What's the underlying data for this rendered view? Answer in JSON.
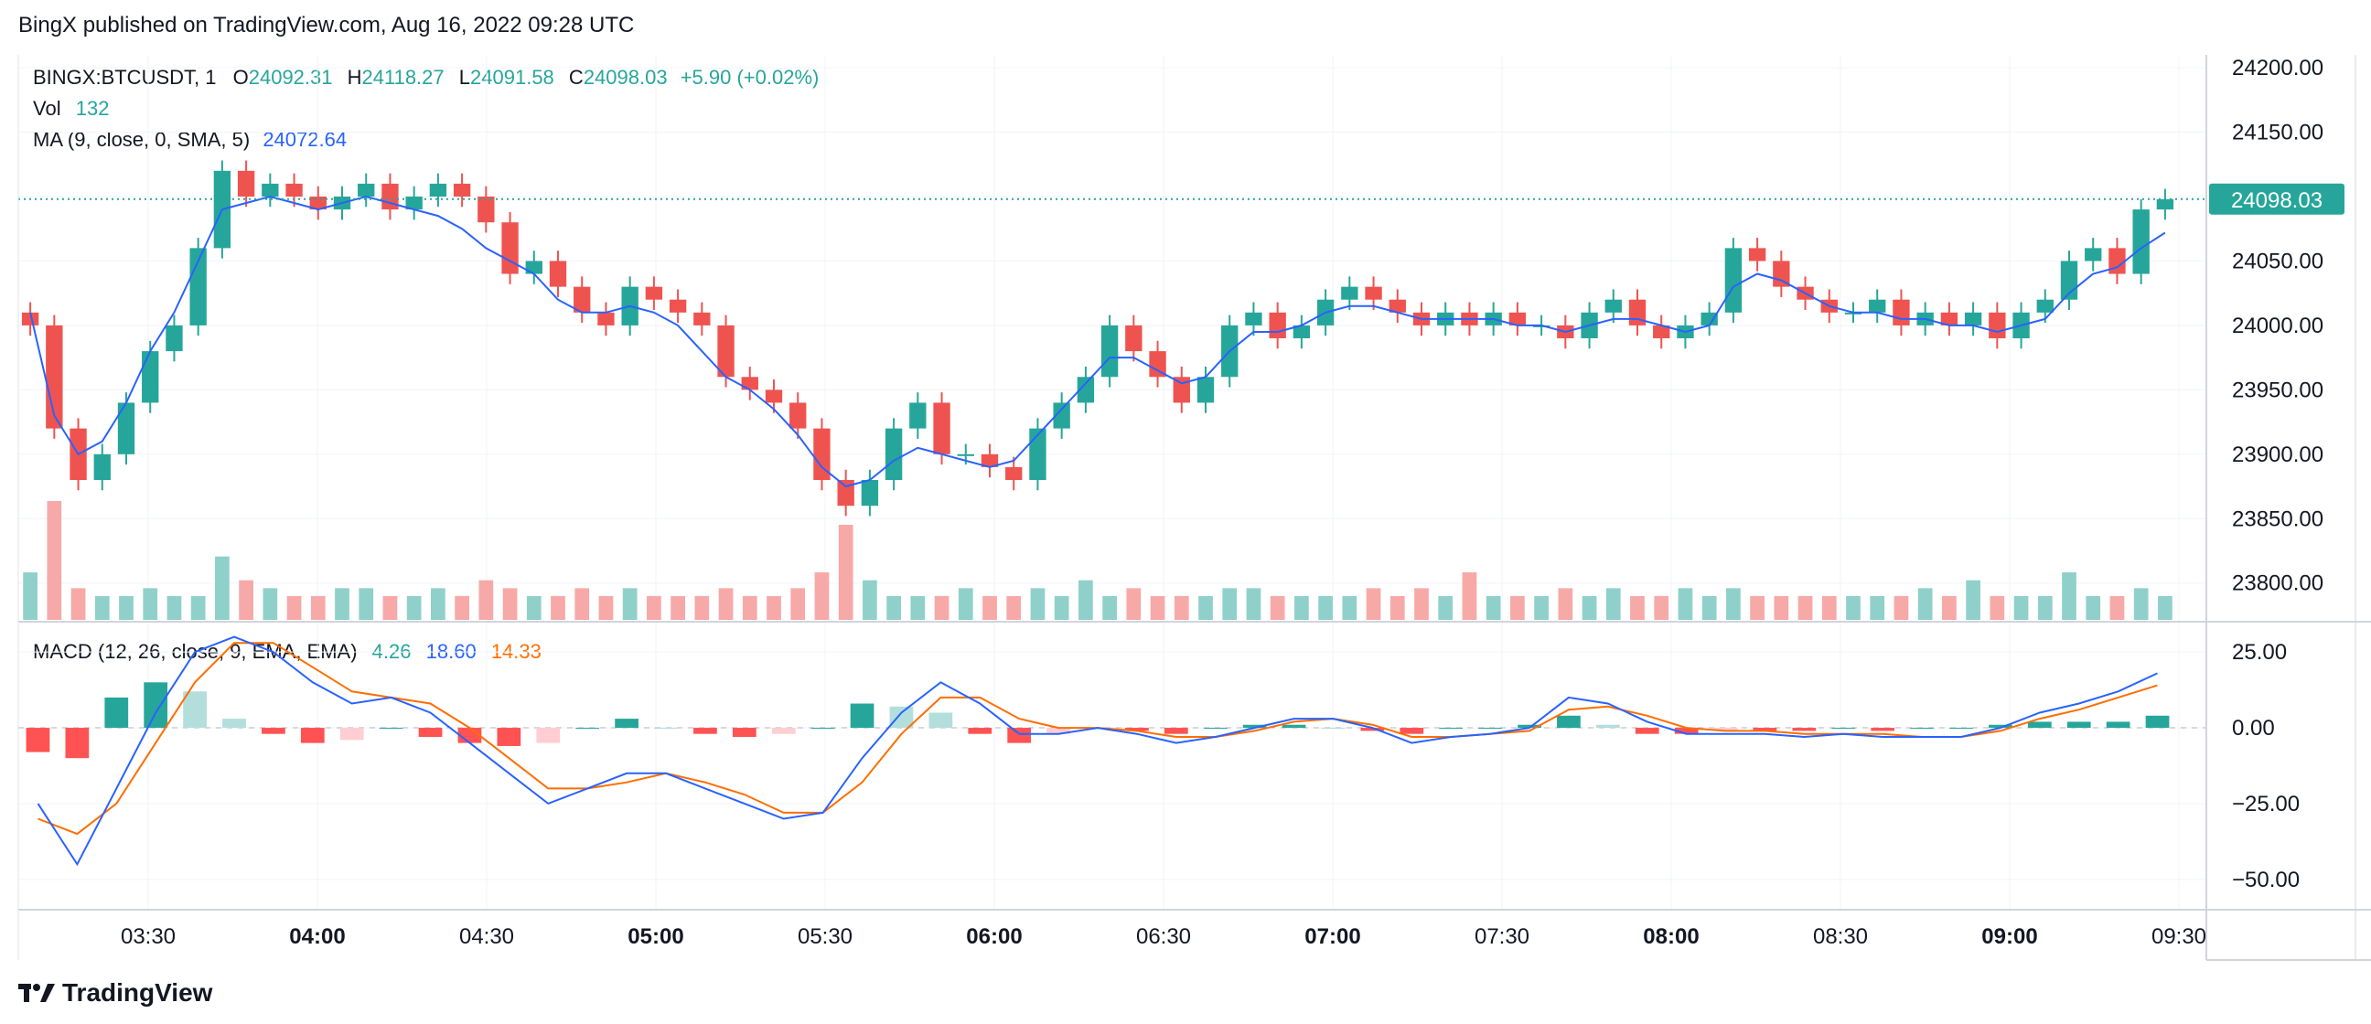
{
  "header": {
    "published": "BingX published on TradingView.com, Aug 16, 2022 09:28 UTC"
  },
  "legend": {
    "symbol": "BINGX:BTCUSDT, 1",
    "o_label": "O",
    "o": "24092.31",
    "h_label": "H",
    "h": "24118.27",
    "l_label": "L",
    "l": "24091.58",
    "c_label": "C",
    "c": "24098.03",
    "change": "+5.90 (+0.02%)",
    "vol_label": "Vol",
    "vol": "132",
    "ma_label": "MA (9, close, 0, SMA, 5)",
    "ma": "24072.64",
    "macd_label": "MACD (12, 26, close, 9, EMA, EMA)",
    "macd_hist": "4.26",
    "macd_line": "18.60",
    "macd_signal": "14.33"
  },
  "footer": {
    "brand": "TradingView"
  },
  "colors": {
    "up": "#26a69a",
    "down": "#ef5350",
    "ma": "#2962ff",
    "signal": "#ff6d00",
    "price_tag": "#26a69a"
  },
  "chart_data": [
    {
      "type": "candlestick",
      "title": "BINGX:BTCUSDT, 1",
      "x_ticks": [
        "03:30",
        "04:00",
        "04:30",
        "05:00",
        "05:30",
        "06:00",
        "06:30",
        "07:00",
        "07:30",
        "08:00",
        "08:30",
        "09:00",
        "09:30"
      ],
      "x_ticks_bold": [
        "04:00",
        "05:00",
        "06:00",
        "07:00",
        "08:00",
        "09:00"
      ],
      "y_ticks": [
        "24200.00",
        "24150.00",
        "24100.00",
        "24050.00",
        "24000.00",
        "23950.00",
        "23900.00",
        "23850.00",
        "23800.00"
      ],
      "ylim": [
        23770,
        24210
      ],
      "last_price": "24098.03",
      "close_series_approx": [
        24000,
        23920,
        23880,
        23900,
        23940,
        23980,
        24000,
        24060,
        24120,
        24100,
        24110,
        24100,
        24090,
        24100,
        24110,
        24090,
        24100,
        24110,
        24100,
        24080,
        24040,
        24050,
        24030,
        24010,
        24000,
        24030,
        24020,
        24010,
        24000,
        23960,
        23950,
        23940,
        23920,
        23880,
        23860,
        23880,
        23920,
        23940,
        23900,
        23900,
        23890,
        23880,
        23920,
        23940,
        23960,
        24000,
        23980,
        23960,
        23940,
        23960,
        24000,
        24010,
        23990,
        24000,
        24020,
        24030,
        24020,
        24010,
        24000,
        24010,
        24000,
        24010,
        24000,
        24000,
        23990,
        24010,
        24020,
        24000,
        23990,
        24000,
        24010,
        24060,
        24050,
        24030,
        24020,
        24010,
        24010,
        24020,
        24000,
        24010,
        24000,
        24010,
        23990,
        24010,
        24020,
        24050,
        24060,
        24040,
        24090,
        24098
      ],
      "ma_series_approx": [
        24010,
        23930,
        23900,
        23910,
        23940,
        23980,
        24010,
        24050,
        24090,
        24095,
        24100,
        24095,
        24090,
        24095,
        24100,
        24095,
        24090,
        24085,
        24075,
        24060,
        24050,
        24040,
        24020,
        24010,
        24010,
        24015,
        24010,
        24000,
        23980,
        23960,
        23950,
        23935,
        23915,
        23890,
        23875,
        23880,
        23895,
        23905,
        23900,
        23895,
        23890,
        23895,
        23915,
        23935,
        23955,
        23975,
        23975,
        23965,
        23955,
        23960,
        23980,
        23995,
        23995,
        24000,
        24010,
        24015,
        24015,
        24010,
        24005,
        24005,
        24005,
        24005,
        24000,
        24000,
        23995,
        24000,
        24005,
        24005,
        24000,
        23995,
        24000,
        24030,
        24040,
        24035,
        24025,
        24015,
        24010,
        24010,
        24005,
        24005,
        24000,
        24000,
        23995,
        24000,
        24005,
        24025,
        24040,
        24045,
        24060,
        24072
      ],
      "volume_series_approx": [
        60,
        150,
        40,
        30,
        30,
        40,
        30,
        30,
        80,
        50,
        40,
        30,
        30,
        40,
        40,
        30,
        30,
        40,
        30,
        50,
        40,
        30,
        30,
        40,
        30,
        40,
        30,
        30,
        30,
        40,
        30,
        30,
        40,
        60,
        120,
        50,
        30,
        30,
        30,
        40,
        30,
        30,
        40,
        30,
        50,
        30,
        40,
        30,
        30,
        30,
        40,
        40,
        30,
        30,
        30,
        30,
        40,
        30,
        40,
        30,
        60,
        30,
        30,
        30,
        40,
        30,
        40,
        30,
        30,
        40,
        30,
        40,
        30,
        30,
        30,
        30,
        30,
        30,
        30,
        40,
        30,
        50,
        30,
        30,
        30,
        60,
        30,
        30,
        40,
        30
      ]
    },
    {
      "type": "macd",
      "title": "MACD (12, 26, close, 9, EMA, EMA)",
      "y_ticks": [
        "25.00",
        "0.00",
        "−25.00",
        "−50.00"
      ],
      "ylim": [
        -60,
        35
      ],
      "macd_series_approx": [
        -25,
        -45,
        -20,
        5,
        25,
        30,
        25,
        15,
        8,
        10,
        5,
        -5,
        -15,
        -25,
        -20,
        -15,
        -15,
        -20,
        -25,
        -30,
        -28,
        -10,
        5,
        15,
        8,
        -2,
        -2,
        0,
        -2,
        -5,
        -3,
        0,
        3,
        3,
        0,
        -5,
        -3,
        -2,
        0,
        10,
        8,
        2,
        -2,
        -2,
        -2,
        -3,
        -2,
        -3,
        -3,
        -3,
        0,
        5,
        8,
        12,
        18
      ],
      "signal_series_approx": [
        -30,
        -35,
        -25,
        -5,
        15,
        28,
        28,
        20,
        12,
        10,
        8,
        0,
        -10,
        -20,
        -20,
        -18,
        -15,
        -18,
        -22,
        -28,
        -28,
        -18,
        -2,
        10,
        10,
        3,
        0,
        0,
        -1,
        -3,
        -3,
        -1,
        2,
        3,
        1,
        -3,
        -3,
        -2,
        -1,
        6,
        7,
        4,
        0,
        -1,
        -1,
        -2,
        -2,
        -2,
        -3,
        -3,
        -1,
        3,
        6,
        10,
        14
      ],
      "histogram_series_approx": [
        -8,
        -10,
        10,
        15,
        12,
        3,
        -2,
        -5,
        -4,
        0,
        -3,
        -5,
        -6,
        -5,
        0,
        3,
        0,
        -2,
        -3,
        -2,
        0,
        8,
        7,
        5,
        -2,
        -5,
        -2,
        0,
        -1,
        -2,
        0,
        1,
        1,
        0,
        -1,
        -2,
        0,
        0,
        1,
        4,
        1,
        -2,
        -2,
        -1,
        -1,
        -1,
        0,
        -1,
        0,
        0,
        1,
        2,
        2,
        2,
        4
      ]
    }
  ]
}
